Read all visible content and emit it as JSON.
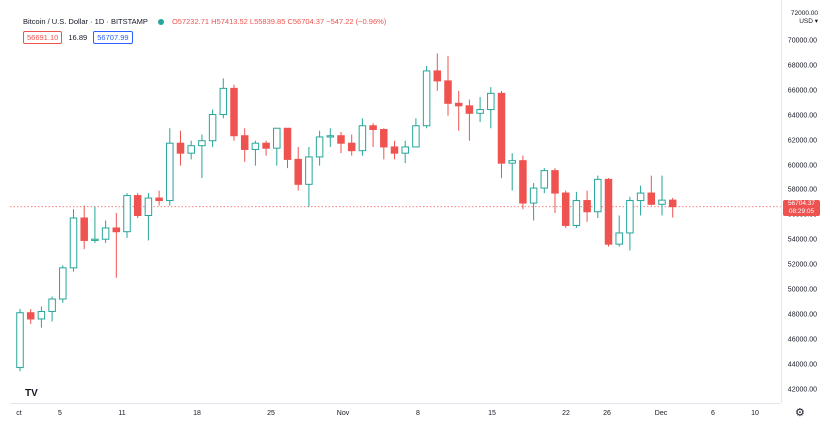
{
  "legend": {
    "title": "Bitcoin / U.S. Dollar · 1D · BITSTAMP",
    "ohlc": "O57232.71  H57413.52  L55839.85  C56704.37  −547.22 (−0.96%)",
    "sell_price": "56691.10",
    "spread": "16.89",
    "buy_price": "56707.99",
    "status_color": "#26a69a"
  },
  "price_axis": {
    "currency_top": "72000.00",
    "currency": "USD ▾",
    "labels": [
      "70000.00",
      "68000.00",
      "66000.00",
      "64000.00",
      "62000.00",
      "60000.00",
      "58000.00",
      "56000.00",
      "54000.00",
      "52000.00",
      "50000.00",
      "48000.00",
      "46000.00",
      "44000.00",
      "42000.00"
    ]
  },
  "last_price": {
    "price": "56704.37",
    "countdown": "08:29:05",
    "color": "#ef5350"
  },
  "time_axis": {
    "labels": [
      "ct",
      "5",
      "11",
      "18",
      "25",
      "Nov",
      "8",
      "15",
      "22",
      "26",
      "Dec",
      "6",
      "10"
    ]
  },
  "logo_text": "TV",
  "gear_icon": "⚙",
  "colors": {
    "up": "#26a69a",
    "down": "#ef5350"
  },
  "chart_data": {
    "type": "candlestick",
    "y_range": [
      40000,
      72000
    ],
    "candles": [
      {
        "o": 43800,
        "h": 48500,
        "l": 43500,
        "c": 48200
      },
      {
        "o": 48200,
        "h": 48500,
        "l": 47300,
        "c": 47700
      },
      {
        "o": 47700,
        "h": 48700,
        "l": 47000,
        "c": 48300
      },
      {
        "o": 48300,
        "h": 49500,
        "l": 47500,
        "c": 49300
      },
      {
        "o": 49300,
        "h": 52000,
        "l": 49000,
        "c": 51800
      },
      {
        "o": 51800,
        "h": 56500,
        "l": 51500,
        "c": 55800
      },
      {
        "o": 55800,
        "h": 56800,
        "l": 53300,
        "c": 54000
      },
      {
        "o": 54000,
        "h": 56700,
        "l": 53800,
        "c": 54100
      },
      {
        "o": 54100,
        "h": 55600,
        "l": 53800,
        "c": 55000
      },
      {
        "o": 55000,
        "h": 56200,
        "l": 51000,
        "c": 54700
      },
      {
        "o": 54700,
        "h": 57800,
        "l": 54200,
        "c": 57600
      },
      {
        "o": 57600,
        "h": 57800,
        "l": 55800,
        "c": 56000
      },
      {
        "o": 56000,
        "h": 57800,
        "l": 54000,
        "c": 57400
      },
      {
        "o": 57400,
        "h": 58000,
        "l": 56800,
        "c": 57200
      },
      {
        "o": 57200,
        "h": 63000,
        "l": 56800,
        "c": 61800
      },
      {
        "o": 61800,
        "h": 62800,
        "l": 60000,
        "c": 61000
      },
      {
        "o": 61000,
        "h": 62000,
        "l": 60500,
        "c": 61600
      },
      {
        "o": 61600,
        "h": 62500,
        "l": 59000,
        "c": 62000
      },
      {
        "o": 62000,
        "h": 64500,
        "l": 61500,
        "c": 64100
      },
      {
        "o": 64100,
        "h": 67000,
        "l": 63800,
        "c": 66200
      },
      {
        "o": 66200,
        "h": 66500,
        "l": 62000,
        "c": 62400
      },
      {
        "o": 62400,
        "h": 63000,
        "l": 60300,
        "c": 61300
      },
      {
        "o": 61300,
        "h": 62000,
        "l": 60000,
        "c": 61800
      },
      {
        "o": 61800,
        "h": 62000,
        "l": 60800,
        "c": 61400
      },
      {
        "o": 61400,
        "h": 63000,
        "l": 60000,
        "c": 63000
      },
      {
        "o": 63000,
        "h": 63000,
        "l": 59800,
        "c": 60500
      },
      {
        "o": 60500,
        "h": 61500,
        "l": 58000,
        "c": 58500
      },
      {
        "o": 58500,
        "h": 61500,
        "l": 56700,
        "c": 60700
      },
      {
        "o": 60700,
        "h": 62800,
        "l": 60000,
        "c": 62300
      },
      {
        "o": 62300,
        "h": 63000,
        "l": 61500,
        "c": 62400
      },
      {
        "o": 62400,
        "h": 62700,
        "l": 61000,
        "c": 61800
      },
      {
        "o": 61800,
        "h": 62500,
        "l": 60800,
        "c": 61200
      },
      {
        "o": 61200,
        "h": 63800,
        "l": 60800,
        "c": 63200
      },
      {
        "o": 63200,
        "h": 63400,
        "l": 61500,
        "c": 62900
      },
      {
        "o": 62900,
        "h": 63000,
        "l": 60500,
        "c": 61500
      },
      {
        "o": 61500,
        "h": 62000,
        "l": 60500,
        "c": 61000
      },
      {
        "o": 61000,
        "h": 62000,
        "l": 60200,
        "c": 61500
      },
      {
        "o": 61500,
        "h": 63800,
        "l": 61500,
        "c": 63200
      },
      {
        "o": 63200,
        "h": 68000,
        "l": 63000,
        "c": 67600
      },
      {
        "o": 67600,
        "h": 69000,
        "l": 66000,
        "c": 66800
      },
      {
        "o": 66800,
        "h": 68800,
        "l": 64000,
        "c": 65000
      },
      {
        "o": 65000,
        "h": 66000,
        "l": 62800,
        "c": 64800
      },
      {
        "o": 64800,
        "h": 65300,
        "l": 62000,
        "c": 64200
      },
      {
        "o": 64200,
        "h": 65500,
        "l": 63500,
        "c": 64500
      },
      {
        "o": 64500,
        "h": 66300,
        "l": 63000,
        "c": 65800
      },
      {
        "o": 65800,
        "h": 66000,
        "l": 59000,
        "c": 60200
      },
      {
        "o": 60200,
        "h": 61000,
        "l": 58000,
        "c": 60400
      },
      {
        "o": 60400,
        "h": 60800,
        "l": 56500,
        "c": 57000
      },
      {
        "o": 57000,
        "h": 58600,
        "l": 55600,
        "c": 58200
      },
      {
        "o": 58200,
        "h": 59800,
        "l": 57800,
        "c": 59600
      },
      {
        "o": 59600,
        "h": 59800,
        "l": 56200,
        "c": 57800
      },
      {
        "o": 57800,
        "h": 58000,
        "l": 55000,
        "c": 55200
      },
      {
        "o": 55200,
        "h": 57900,
        "l": 55000,
        "c": 57200
      },
      {
        "o": 57200,
        "h": 58000,
        "l": 55500,
        "c": 56300
      },
      {
        "o": 56300,
        "h": 59200,
        "l": 55800,
        "c": 58900
      },
      {
        "o": 58900,
        "h": 59000,
        "l": 53500,
        "c": 53700
      },
      {
        "o": 53700,
        "h": 56000,
        "l": 53500,
        "c": 54600
      },
      {
        "o": 54600,
        "h": 57500,
        "l": 53200,
        "c": 57200
      },
      {
        "o": 57200,
        "h": 58400,
        "l": 56000,
        "c": 57800
      },
      {
        "o": 57800,
        "h": 59200,
        "l": 56800,
        "c": 56900
      },
      {
        "o": 56900,
        "h": 59200,
        "l": 56000,
        "c": 57232
      },
      {
        "o": 57232,
        "h": 57413,
        "l": 55839,
        "c": 56704
      }
    ]
  }
}
